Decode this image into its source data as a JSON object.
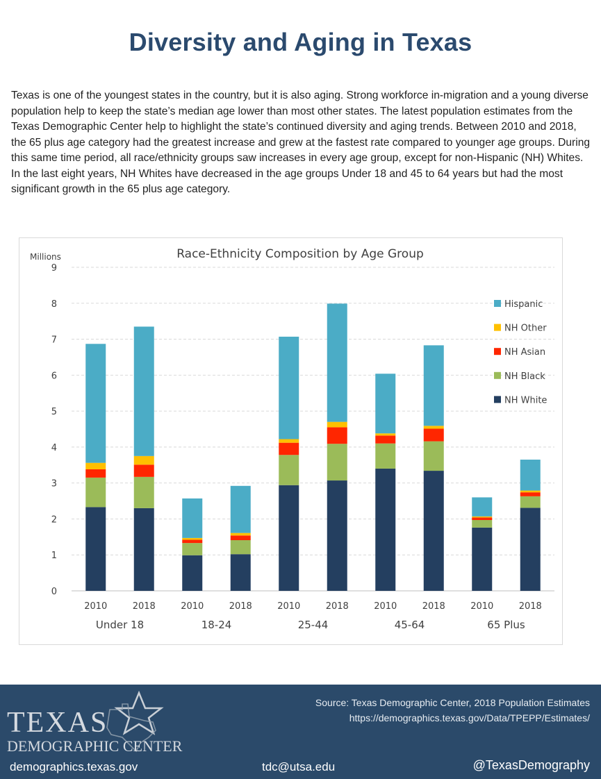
{
  "page": {
    "title": "Diversity and Aging in Texas",
    "intro": "Texas is one of the youngest states in the country, but it is also aging. Strong workforce in-migration and a young diverse population help to keep the state’s median age lower than most other states. The latest population estimates from the Texas Demographic Center help to highlight the state’s continued diversity and aging trends. Between 2010 and 2018, the 65 plus age category had the greatest increase and grew at the fastest rate compared to younger age groups. During this same time period, all race/ethnicity groups saw increases in every age group, except for non-Hispanic (NH) Whites. In the last eight years, NH Whites have decreased in the age groups Under 18 and 45 to 64 years but had the most significant growth in the 65 plus age category."
  },
  "chart_data": {
    "type": "bar",
    "stacked": true,
    "title": "Race-Ethnicity Composition by Age Group",
    "ylabel": "Millions",
    "ylim": [
      0,
      9
    ],
    "yticks": [
      0,
      1,
      2,
      3,
      4,
      5,
      6,
      7,
      8,
      9
    ],
    "grid": true,
    "legend_position": "right",
    "categories": [
      "2010",
      "2018",
      "2010",
      "2018",
      "2010",
      "2018",
      "2010",
      "2018",
      "2010",
      "2018"
    ],
    "groups": [
      "Under 18",
      "18-24",
      "25-44",
      "45-64",
      "65 Plus"
    ],
    "series": [
      {
        "name": "NH White",
        "color": "#243f60",
        "values": [
          2.33,
          2.3,
          0.99,
          1.02,
          2.94,
          3.07,
          3.4,
          3.34,
          1.76,
          2.31
        ]
      },
      {
        "name": "NH Black",
        "color": "#9bbb59",
        "values": [
          0.82,
          0.87,
          0.34,
          0.39,
          0.84,
          1.02,
          0.7,
          0.82,
          0.21,
          0.32
        ]
      },
      {
        "name": "NH Asian",
        "color": "#ff2600",
        "values": [
          0.23,
          0.34,
          0.09,
          0.13,
          0.34,
          0.46,
          0.22,
          0.35,
          0.07,
          0.11
        ]
      },
      {
        "name": "NH Other",
        "color": "#ffc000",
        "values": [
          0.18,
          0.24,
          0.05,
          0.07,
          0.1,
          0.15,
          0.06,
          0.08,
          0.03,
          0.05
        ]
      },
      {
        "name": "Hispanic",
        "color": "#4bacc6",
        "values": [
          3.31,
          3.6,
          1.1,
          1.31,
          2.85,
          3.29,
          1.66,
          2.24,
          0.53,
          0.86
        ]
      }
    ]
  },
  "footer": {
    "logo_text_1": "TEXAS",
    "logo_text_2": "DEMOGRAPHIC CENTER",
    "source": "Source: Texas Demographic Center, 2018 Population Estimates",
    "url": "https://demographics.texas.gov/Data/TPEPP/Estimates/",
    "website": "demographics.texas.gov",
    "email": "tdc@utsa.edu",
    "twitter": "@TexasDemography"
  }
}
